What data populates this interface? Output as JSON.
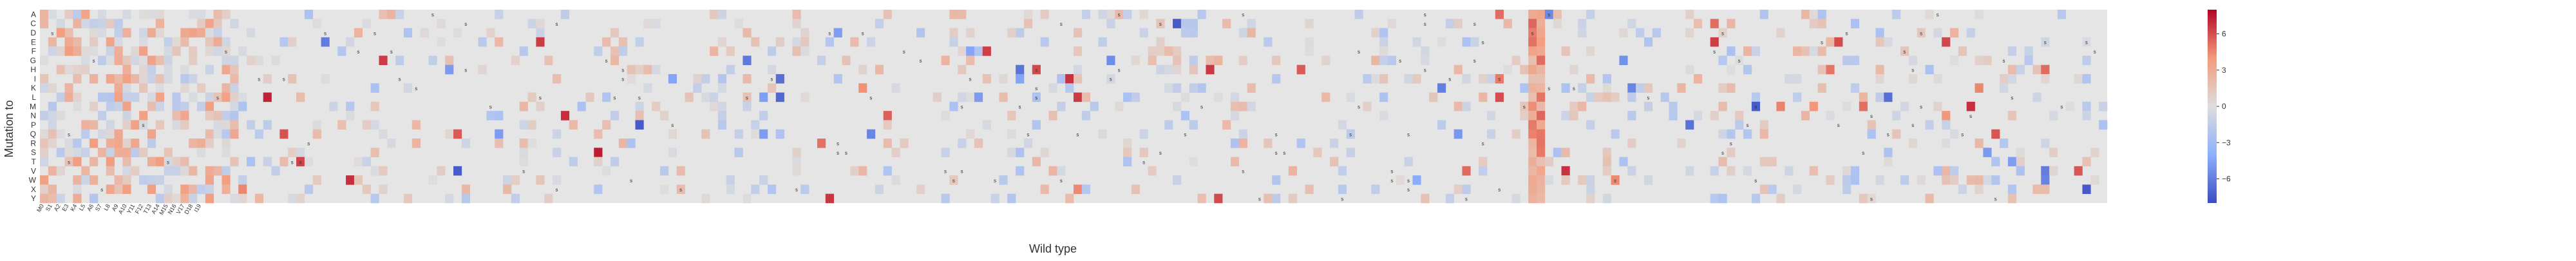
{
  "chart_data": {
    "type": "heatmap",
    "xlabel": "Wild type",
    "ylabel": "Mutation to",
    "rows": [
      "A",
      "C",
      "D",
      "E",
      "F",
      "G",
      "H",
      "I",
      "K",
      "L",
      "M",
      "N",
      "P",
      "Q",
      "R",
      "S",
      "T",
      "V",
      "W",
      "X",
      "Y"
    ],
    "columns_visible_start": [
      "M0",
      "S1",
      "A2",
      "E3",
      "K4",
      "L5",
      "A6",
      "S7",
      "L8",
      "A9",
      "A10",
      "Y11",
      "F12",
      "T13",
      "A14",
      "M15",
      "N16",
      "V17",
      "D18",
      "I19"
    ],
    "n_columns": 250,
    "colorbar": {
      "min": -8,
      "max": 8,
      "ticks": [
        6,
        3,
        0,
        -3,
        -6
      ],
      "tick_labels": [
        "6",
        "3",
        "0",
        "−3",
        "−6"
      ]
    },
    "marker_label": "s",
    "hot_column_index": 180,
    "grid": false,
    "colormap": [
      "#3b4cc0",
      "#dddddd",
      "#b40426"
    ],
    "background_color": "#e5e5e5"
  }
}
